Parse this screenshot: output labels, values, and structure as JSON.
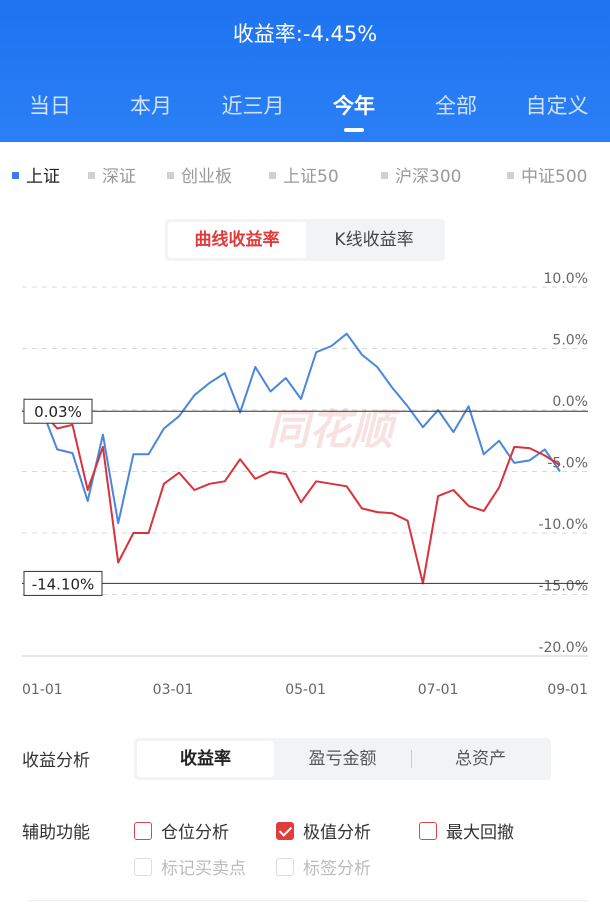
{
  "header": {
    "title": "收益率:-4.45%",
    "tabs": [
      {
        "label": "当日",
        "active": false
      },
      {
        "label": "本月",
        "active": false
      },
      {
        "label": "近三月",
        "active": false
      },
      {
        "label": "今年",
        "active": true
      },
      {
        "label": "全部",
        "active": false
      },
      {
        "label": "自定义",
        "active": false
      }
    ]
  },
  "index_selector": [
    {
      "label": "上证",
      "active": true
    },
    {
      "label": "深证",
      "active": false
    },
    {
      "label": "创业板",
      "active": false
    },
    {
      "label": "上证50",
      "active": false
    },
    {
      "label": "沪深300",
      "active": false
    },
    {
      "label": "中证500",
      "active": false
    }
  ],
  "chart_mode": {
    "curve": "曲线收益率",
    "kline": "K线收益率",
    "active": "curve"
  },
  "chart": {
    "watermark": "同花顺",
    "max_label": "0.03%",
    "min_label": "-14.10%",
    "y_ticks": [
      "10.0%",
      "5.0%",
      "0.0%",
      "-5.0%",
      "-10.0%",
      "-15.0%",
      "-20.0%"
    ],
    "x_ticks": [
      "01-01",
      "03-01",
      "05-01",
      "07-01",
      "09-01"
    ]
  },
  "chart_data": {
    "type": "line",
    "x": [
      "01-01",
      "01-08",
      "01-15",
      "01-22",
      "01-29",
      "02-05",
      "02-12",
      "02-19",
      "02-26",
      "03-05",
      "03-12",
      "03-19",
      "03-26",
      "04-02",
      "04-09",
      "04-16",
      "04-23",
      "04-30",
      "05-07",
      "05-14",
      "05-21",
      "05-28",
      "06-04",
      "06-11",
      "06-18",
      "06-25",
      "07-02",
      "07-09",
      "07-16",
      "07-23",
      "07-30",
      "08-06",
      "08-13",
      "08-20",
      "08-27"
    ],
    "series": [
      {
        "color": "#4a87dc",
        "values": [
          0.0,
          -3.2,
          -3.5,
          -7.4,
          -2.0,
          -9.2,
          -3.6,
          -3.6,
          -1.5,
          -0.5,
          1.2,
          2.2,
          3.0,
          -0.2,
          3.5,
          1.5,
          2.6,
          0.9,
          4.7,
          5.2,
          6.2,
          4.5,
          3.5,
          1.8,
          0.3,
          -1.4,
          0.0,
          -1.8,
          0.3,
          -3.6,
          -2.5,
          -4.3,
          -4.1,
          -3.2,
          -5.0
        ]
      },
      {
        "color": "#d8333b",
        "values": [
          -0.1,
          -1.5,
          -1.2,
          -6.5,
          -3.0,
          -12.4,
          -10.0,
          -10.0,
          -6.0,
          -5.1,
          -6.5,
          -6.0,
          -5.8,
          -4.0,
          -5.6,
          -5.0,
          -5.2,
          -7.5,
          -5.8,
          -6.0,
          -6.2,
          -8.0,
          -8.3,
          -8.4,
          -9.0,
          -14.1,
          -7.0,
          -6.5,
          -7.8,
          -8.2,
          -6.3,
          -3.0,
          -3.1,
          -3.7,
          -4.5
        ]
      }
    ],
    "ylim": [
      -20,
      10
    ],
    "xlabel": "",
    "ylabel": ""
  },
  "analysis": {
    "label": "收益分析",
    "tabs": [
      {
        "label": "收益率",
        "active": true
      },
      {
        "label": "盈亏金额",
        "active": false
      },
      {
        "label": "总资产",
        "active": false
      }
    ]
  },
  "aux": {
    "label": "辅助功能",
    "options": [
      {
        "label": "仓位分析",
        "checked": false,
        "disabled": false
      },
      {
        "label": "极值分析",
        "checked": true,
        "disabled": false
      },
      {
        "label": "最大回撤",
        "checked": false,
        "disabled": false
      },
      {
        "label": "标记买卖点",
        "checked": false,
        "disabled": true
      },
      {
        "label": "标签分析",
        "checked": false,
        "disabled": true
      }
    ]
  }
}
